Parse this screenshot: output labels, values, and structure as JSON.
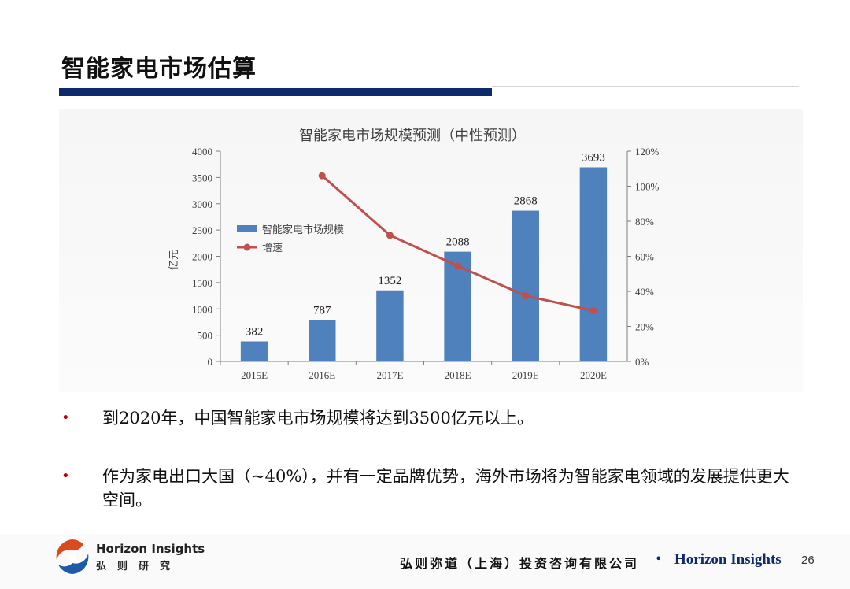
{
  "slide": {
    "title": "智能家电市场估算",
    "bullets": [
      {
        "marker": "•",
        "text": "到2020年，中国智能家电市场规模将达到3500亿元以上。"
      },
      {
        "marker": "•",
        "text": "作为家电出口大国（~40%），并有一定品牌优势，海外市场将为智能家电领域的发展提供更大空间。"
      }
    ]
  },
  "footer": {
    "brand_en": "Horizon Insights",
    "brand_cn": "弘则研究",
    "company": "弘则弥道（上海）投资咨询有限公司",
    "separator": "•",
    "brand_right": "Horizon Insights",
    "page_number": "26"
  },
  "colors": {
    "title_bar": "#0d2a6b",
    "bar": "#4f81bd",
    "line": "#c0504d",
    "bullet_marker": "#c00000"
  },
  "chart_data": {
    "type": "bar",
    "title": "智能家电市场规模预测（中性预测）",
    "ylabel": "亿元",
    "categories": [
      "2015E",
      "2016E",
      "2017E",
      "2018E",
      "2019E",
      "2020E"
    ],
    "ylim": [
      0,
      4000
    ],
    "y_ticks": [
      "0",
      "500",
      "1000",
      "1500",
      "2000",
      "2500",
      "3000",
      "3500",
      "4000"
    ],
    "y2lim": [
      0,
      1.2
    ],
    "y2_ticks": [
      "0%",
      "20%",
      "40%",
      "60%",
      "80%",
      "100%",
      "120%"
    ],
    "legend_position": "left",
    "series": [
      {
        "name": "智能家电市场规模",
        "kind": "bar",
        "axis": "left",
        "values": [
          382,
          787,
          1352,
          2088,
          2868,
          3693
        ],
        "labels": [
          "382",
          "787",
          "1352",
          "2088",
          "2868",
          "3693"
        ]
      },
      {
        "name": "增速",
        "kind": "line",
        "axis": "right",
        "values": [
          null,
          1.06,
          0.72,
          0.545,
          0.375,
          0.29
        ]
      }
    ],
    "grid": false
  }
}
